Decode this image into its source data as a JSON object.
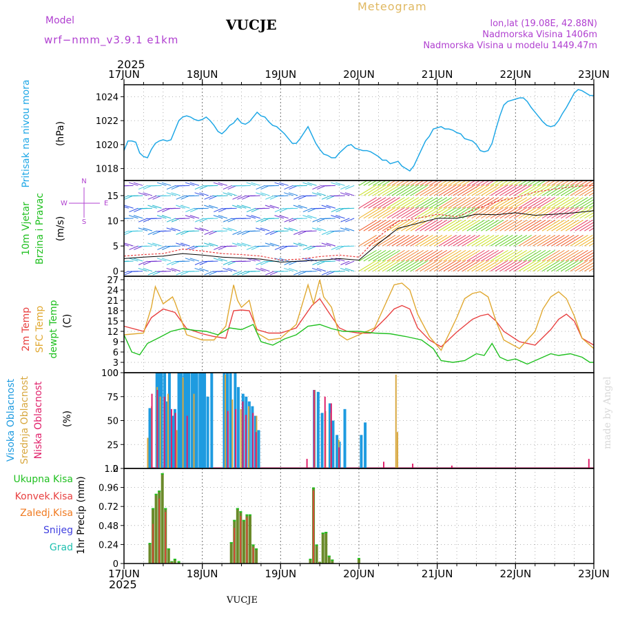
{
  "header": {
    "model_label": "Model",
    "model_name": "wrf−nmm_v3.9.1  e1km",
    "station": "VUCJE",
    "meteogram": "Meteogram",
    "lonlat": "lon,lat (19.08E, 42.88N)",
    "elev": "Nadmorska Visina 1406m",
    "elev_model": "Nadmorska Visina u modelu 1449.47m",
    "year_top": "2025",
    "year_bottom": "2025",
    "station_footer": "VUCJE",
    "credit": "made by Angel"
  },
  "colors": {
    "pressure": "#1ea7e6",
    "wind_label": "#20c020",
    "dir_label": "#b040d0",
    "temp2m": "#e84040",
    "sfc": "#e0a830",
    "dewpt": "#20c020",
    "high_cloud": "#1e9be0",
    "mid_cloud": "#d8a840",
    "low_cloud": "#e0206a",
    "total_precip": "#20c020",
    "conv_precip": "#e84040",
    "frozen": "#f07a20",
    "snow": "#4040e0",
    "hail": "#20c0b0",
    "header_purple": "#b040d0",
    "header_gold": "#e0b860"
  },
  "x_axis": {
    "ticks": [
      "17JUN",
      "18JUN",
      "19JUN",
      "20JUN",
      "21JUN",
      "22JUN",
      "23JUN"
    ]
  },
  "panel_labels": {
    "pressure": [
      "Pritisak na nivou mora",
      "(hPa)"
    ],
    "wind": [
      "10m Vjetar",
      "Brzina i Pravac",
      "(m/s)"
    ],
    "compass": [
      "N",
      "W",
      "E",
      "S"
    ],
    "temp": [
      "2m Temp",
      "SFC Temp",
      "dewpt Temp",
      "(C)"
    ],
    "cloud": [
      "Visoka Oblacnost",
      "Srednja Oblacnost",
      "Niska Oblacnost",
      "(%)"
    ],
    "precip_unit": "1hr Precip (mm)",
    "precip_legend": [
      "Ukupna Kisa",
      "Konvek.Kisa",
      "Zaledj.Kisa",
      "Snijeg",
      "Grad"
    ]
  },
  "chart_data": [
    {
      "type": "line",
      "name": "pressure",
      "ylim": [
        1017,
        1025
      ],
      "yticks": [
        1018,
        1020,
        1022,
        1024
      ],
      "x": [
        0,
        0.05,
        0.1,
        0.15,
        0.2,
        0.25,
        0.3,
        0.35,
        0.4,
        0.45,
        0.5,
        0.55,
        0.6,
        0.65,
        0.7,
        0.75,
        0.8,
        0.85,
        0.9,
        0.95,
        1,
        1.05,
        1.1,
        1.15,
        1.2,
        1.25,
        1.3,
        1.35,
        1.4,
        1.45,
        1.5,
        1.55,
        1.6,
        1.65,
        1.7,
        1.75,
        1.8,
        1.85,
        1.9,
        1.95,
        2,
        2.05,
        2.1,
        2.15,
        2.2,
        2.25,
        2.3,
        2.35,
        2.4,
        2.45,
        2.5,
        2.55,
        2.6,
        2.65,
        2.7,
        2.75,
        2.8,
        2.85,
        2.9,
        2.95,
        3,
        3.05,
        3.1,
        3.15,
        3.2,
        3.25,
        3.3,
        3.35,
        3.4,
        3.45,
        3.5,
        3.55,
        3.6,
        3.65,
        3.7,
        3.75,
        3.8,
        3.85,
        3.9,
        3.95,
        4,
        4.05,
        4.1,
        4.15,
        4.2,
        4.25,
        4.3,
        4.35,
        4.4,
        4.45,
        4.5,
        4.55,
        4.6,
        4.65,
        4.7,
        4.75,
        4.8,
        4.85,
        4.9,
        4.95,
        5,
        5.05,
        5.1,
        5.15,
        5.2,
        5.25,
        5.3,
        5.35,
        5.4,
        5.45,
        5.5,
        5.55,
        5.6,
        5.65,
        5.7,
        5.75,
        5.8,
        5.85,
        5.9,
        5.95,
        6
      ],
      "values": [
        1019.5,
        1020.3,
        1020.3,
        1020.2,
        1019.3,
        1019.0,
        1018.9,
        1019.6,
        1020.1,
        1020.3,
        1020.4,
        1020.3,
        1020.4,
        1021.2,
        1022.0,
        1022.3,
        1022.4,
        1022.3,
        1022.1,
        1022.0,
        1022.1,
        1022.3,
        1022.0,
        1021.6,
        1021.1,
        1020.9,
        1021.2,
        1021.6,
        1021.8,
        1022.2,
        1021.8,
        1021.7,
        1021.9,
        1022.3,
        1022.7,
        1022.4,
        1022.3,
        1021.9,
        1021.6,
        1021.5,
        1021.2,
        1020.9,
        1020.5,
        1020.1,
        1020.1,
        1020.5,
        1021.0,
        1021.5,
        1020.8,
        1020.1,
        1019.6,
        1019.2,
        1019.1,
        1018.9,
        1018.9,
        1019.3,
        1019.6,
        1019.9,
        1020.0,
        1019.7,
        1019.6,
        1019.5,
        1019.5,
        1019.4,
        1019.2,
        1019.0,
        1018.7,
        1018.7,
        1018.4,
        1018.5,
        1018.6,
        1018.2,
        1018.0,
        1017.8,
        1018.2,
        1018.9,
        1019.6,
        1020.3,
        1020.7,
        1021.3,
        1021.4,
        1021.5,
        1021.3,
        1021.3,
        1021.2,
        1021.0,
        1020.9,
        1020.5,
        1020.4,
        1020.3,
        1020.0,
        1019.5,
        1019.4,
        1019.5,
        1020.1,
        1021.3,
        1022.4,
        1023.3,
        1023.6,
        1023.7,
        1023.8,
        1023.9,
        1023.9,
        1023.6,
        1023.1,
        1022.7,
        1022.3,
        1021.9,
        1021.6,
        1021.5,
        1021.6,
        1022.0,
        1022.6,
        1023.1,
        1023.7,
        1024.3,
        1024.6,
        1024.5,
        1024.3,
        1024.1,
        1024.1
      ]
    },
    {
      "type": "line",
      "name": "wind_speed",
      "ylim": [
        -1,
        18
      ],
      "yticks": [
        0,
        5,
        10,
        15
      ],
      "x": [
        0,
        0.25,
        0.5,
        0.75,
        1,
        1.25,
        1.5,
        1.75,
        2,
        2.25,
        2.5,
        2.75,
        3,
        3.25,
        3.5,
        3.75,
        4,
        4.25,
        4.5,
        4.75,
        5,
        5.25,
        5.5,
        5.75,
        6
      ],
      "values": [
        3.0,
        3.3,
        3.5,
        4.4,
        4.0,
        3.5,
        3.3,
        3.0,
        2.2,
        2.4,
        2.9,
        3.2,
        2.8,
        6.8,
        9.9,
        10.5,
        11.3,
        10.8,
        12.4,
        13.8,
        14.6,
        15.7,
        16.3,
        16.8,
        17.0
      ],
      "gust_values": [
        2.5,
        2.8,
        3.0,
        3.5,
        3.2,
        2.8,
        2.6,
        2.4,
        1.8,
        2.0,
        2.2,
        2.5,
        2.2,
        5.5,
        8.5,
        9.5,
        10.5,
        10.5,
        11.3,
        11.2,
        11.6,
        11.1,
        11.3,
        11.6,
        12.0
      ]
    },
    {
      "type": "line",
      "name": "temperature",
      "ylim": [
        0,
        28
      ],
      "yticks": [
        0,
        3,
        6,
        9,
        12,
        15,
        18,
        21,
        24,
        27
      ],
      "series": [
        {
          "name": "2m Temp",
          "x": [
            0,
            0.25,
            0.35,
            0.5,
            0.65,
            0.8,
            1.0,
            1.15,
            1.3,
            1.4,
            1.5,
            1.6,
            1.7,
            1.85,
            2.0,
            2.2,
            2.4,
            2.5,
            2.6,
            2.75,
            2.85,
            3.0,
            3.15,
            3.35,
            3.45,
            3.55,
            3.65,
            3.75,
            3.9,
            4.05,
            4.25,
            4.45,
            4.55,
            4.65,
            4.75,
            4.85,
            5.05,
            5.25,
            5.45,
            5.55,
            5.65,
            5.75,
            5.85,
            6.0
          ],
          "values": [
            13.5,
            12.0,
            16.0,
            18.5,
            17.5,
            12.8,
            11.3,
            10.5,
            10.0,
            18.0,
            18.2,
            18.0,
            12.5,
            11.5,
            11.5,
            13.0,
            19.5,
            21.5,
            18.0,
            13.0,
            12.0,
            11.5,
            11.5,
            16.0,
            18.5,
            19.5,
            18.5,
            13.0,
            9.5,
            7.5,
            11.8,
            15.5,
            16.5,
            17.0,
            15.0,
            12.0,
            9.0,
            8.0,
            12.5,
            15.5,
            17.0,
            15.0,
            10.0,
            8.0
          ]
        },
        {
          "name": "SFC Temp",
          "x": [
            0,
            0.25,
            0.35,
            0.4,
            0.5,
            0.62,
            0.65,
            0.8,
            1.0,
            1.15,
            1.3,
            1.4,
            1.45,
            1.5,
            1.6,
            1.7,
            1.85,
            2.0,
            2.2,
            2.35,
            2.42,
            2.5,
            2.55,
            2.65,
            2.75,
            2.85,
            3.0,
            3.2,
            3.35,
            3.45,
            3.55,
            3.65,
            3.75,
            3.9,
            4.05,
            4.25,
            4.35,
            4.45,
            4.55,
            4.65,
            4.75,
            4.85,
            5.05,
            5.25,
            5.35,
            5.45,
            5.55,
            5.65,
            5.75,
            5.85,
            6.0
          ],
          "values": [
            11.0,
            11.5,
            19.0,
            25.0,
            20.0,
            22.0,
            20.5,
            11.0,
            9.5,
            9.5,
            13.5,
            25.5,
            21.0,
            19.0,
            21.0,
            11.5,
            9.5,
            10.0,
            14.0,
            25.5,
            20.0,
            27.0,
            22.0,
            19.0,
            11.0,
            9.5,
            11.0,
            13.0,
            20.5,
            25.5,
            26.0,
            24.0,
            17.0,
            10.5,
            6.5,
            16.0,
            21.5,
            23.0,
            23.5,
            22.0,
            15.0,
            9.5,
            7.0,
            12.0,
            18.5,
            22.0,
            23.5,
            21.5,
            16.5,
            10.0,
            7.0
          ]
        },
        {
          "name": "dewpt Temp",
          "x": [
            0,
            0.1,
            0.2,
            0.3,
            0.45,
            0.6,
            0.75,
            0.9,
            1.05,
            1.2,
            1.35,
            1.5,
            1.65,
            1.75,
            1.9,
            2.05,
            2.2,
            2.35,
            2.5,
            2.65,
            2.8,
            3.0,
            3.2,
            3.4,
            3.6,
            3.8,
            3.95,
            4.05,
            4.2,
            4.35,
            4.5,
            4.6,
            4.7,
            4.8,
            4.9,
            5.0,
            5.15,
            5.3,
            5.45,
            5.55,
            5.7,
            5.85,
            5.95,
            6.0
          ],
          "values": [
            11.0,
            6.0,
            5.2,
            8.5,
            10.2,
            12.0,
            12.8,
            12.3,
            12.0,
            11.0,
            13.0,
            12.5,
            14.0,
            9.0,
            8.0,
            9.8,
            11.0,
            13.5,
            14.0,
            12.8,
            12.0,
            12.0,
            11.5,
            11.3,
            10.5,
            9.5,
            7.0,
            3.5,
            3.0,
            3.5,
            5.5,
            5.0,
            8.5,
            4.5,
            3.5,
            4.0,
            2.5,
            4.0,
            5.5,
            5.0,
            5.5,
            4.5,
            3.0,
            3.0
          ]
        }
      ]
    },
    {
      "type": "bar",
      "name": "cloud",
      "ylim": [
        0,
        100
      ],
      "yticks": [
        0,
        25,
        50,
        75,
        100
      ],
      "series": [
        {
          "name": "Visoka Oblacnost",
          "x": [
            0.33,
            0.42,
            0.45,
            0.48,
            0.52,
            0.55,
            0.58,
            0.62,
            0.65,
            0.7,
            0.73,
            0.77,
            0.8,
            0.83,
            0.87,
            0.9,
            0.93,
            0.97,
            1.0,
            1.03,
            1.07,
            1.12,
            1.28,
            1.32,
            1.36,
            1.42,
            1.46,
            1.52,
            1.56,
            1.6,
            1.64,
            1.68,
            1.72,
            2.43,
            2.48,
            2.53,
            2.63,
            2.67,
            2.72,
            2.75,
            2.82,
            3.03,
            3.08
          ],
          "values": [
            63,
            100,
            100,
            100,
            100,
            70,
            100,
            55,
            62,
            100,
            100,
            100,
            100,
            100,
            100,
            100,
            100,
            100,
            100,
            100,
            75,
            100,
            100,
            100,
            100,
            100,
            85,
            78,
            75,
            70,
            65,
            55,
            40,
            82,
            80,
            58,
            68,
            50,
            35,
            28,
            62,
            35,
            48
          ]
        },
        {
          "name": "Srednja Oblacnost",
          "x": [
            0.29,
            0.34,
            0.41,
            0.45,
            0.55,
            0.66,
            0.74,
            0.88,
            1.28,
            1.37,
            1.48,
            1.58,
            1.68,
            2.42,
            2.56,
            2.63,
            2.73,
            3.46,
            3.48
          ],
          "values": [
            32,
            65,
            85,
            75,
            78,
            40,
            95,
            78,
            98,
            72,
            62,
            65,
            55,
            82,
            60,
            58,
            30,
            98,
            38
          ]
        },
        {
          "name": "Niska Oblacnost",
          "x": [
            0.37,
            0.44,
            0.53,
            0.62,
            0.67,
            0.82,
            1.34,
            1.44,
            1.53,
            1.57,
            1.66,
            1.7,
            2.35,
            2.44,
            2.58,
            2.66,
            2.76,
            3.33,
            3.7,
            4.2,
            5.95
          ],
          "values": [
            78,
            82,
            75,
            62,
            58,
            55,
            60,
            62,
            70,
            56,
            58,
            38,
            10,
            82,
            75,
            68,
            22,
            7,
            5,
            3,
            10
          ]
        }
      ]
    },
    {
      "type": "bar",
      "name": "precip",
      "ylim": [
        0,
        1.2
      ],
      "yticks": [
        0,
        0.24,
        0.48,
        0.72,
        0.96,
        1.2
      ],
      "series": [
        {
          "name": "Ukupna Kisa",
          "x": [
            0.33,
            0.37,
            0.41,
            0.45,
            0.49,
            0.53,
            0.57,
            0.61,
            0.65,
            0.7,
            1.37,
            1.41,
            1.45,
            1.49,
            1.53,
            1.57,
            1.61,
            1.65,
            1.69,
            2.38,
            2.42,
            2.46,
            2.5,
            2.54,
            2.58,
            2.62,
            2.66,
            3.0
          ],
          "values": [
            0.26,
            0.7,
            0.88,
            0.92,
            1.14,
            0.7,
            0.19,
            0.03,
            0.06,
            0.03,
            0.27,
            0.55,
            0.7,
            0.66,
            0.55,
            0.62,
            0.62,
            0.24,
            0.19,
            0.06,
            0.96,
            0.24,
            0.02,
            0.39,
            0.4,
            0.1,
            0.05,
            0.07
          ]
        },
        {
          "name": "Konvek.Kisa",
          "x": [
            0.37,
            0.45,
            0.53,
            0.61,
            1.41,
            1.49,
            1.57,
            1.65,
            2.42,
            2.5
          ],
          "values": [
            0.5,
            0.82,
            0.65,
            0.02,
            0.45,
            0.6,
            0.58,
            0.2,
            0.92,
            0.02
          ]
        }
      ]
    }
  ]
}
